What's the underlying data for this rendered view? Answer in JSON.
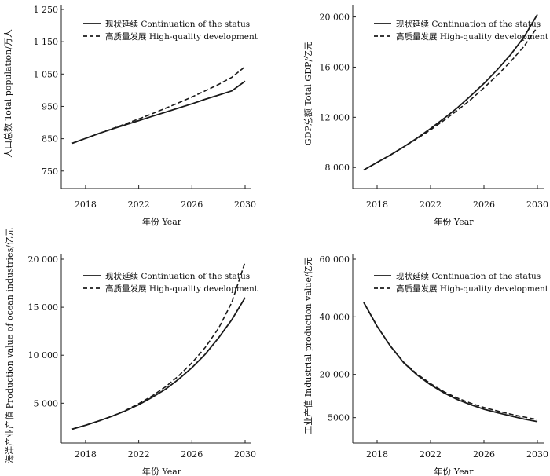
{
  "chart_data": [
    {
      "type": "line",
      "xlabel": "年份 Year",
      "ylabel": "人口总数 Total population/万人",
      "x": [
        2017,
        2018,
        2019,
        2020,
        2021,
        2022,
        2023,
        2024,
        2025,
        2026,
        2027,
        2028,
        2029,
        2030
      ],
      "xticks": [
        2018,
        2022,
        2026,
        2030
      ],
      "xtick_labels": [
        "2018",
        "2022",
        "2026",
        "2030"
      ],
      "yticks": [
        750,
        850,
        950,
        1050,
        1150,
        1250
      ],
      "ytick_labels": [
        "750",
        "850",
        "950",
        "1 050",
        "1 150",
        "1 250"
      ],
      "ylim": [
        730,
        1250
      ],
      "legend_position": "top-left",
      "series": [
        {
          "name": "现状延续 Continuation of the status",
          "style": "solid",
          "values": [
            836,
            851,
            866,
            880,
            893,
            906,
            919,
            932,
            945,
            958,
            972,
            985,
            998,
            1028
          ]
        },
        {
          "name": "高质量发展 High-quality development",
          "style": "dashed",
          "values": [
            836,
            851,
            866,
            881,
            896,
            911,
            927,
            944,
            961,
            979,
            998,
            1018,
            1040,
            1073
          ]
        }
      ]
    },
    {
      "type": "line",
      "xlabel": "年份 Year",
      "ylabel": "GDP总额 Total GDP/亿元",
      "x": [
        2017,
        2018,
        2019,
        2020,
        2021,
        2022,
        2023,
        2024,
        2025,
        2026,
        2027,
        2028,
        2029,
        2030
      ],
      "xticks": [
        2018,
        2022,
        2026,
        2030
      ],
      "xtick_labels": [
        "2018",
        "2022",
        "2026",
        "2030"
      ],
      "yticks": [
        8000,
        12000,
        16000,
        20000
      ],
      "ytick_labels": [
        "8 000",
        "12 000",
        "16 000",
        "20 000"
      ],
      "ylim": [
        7200,
        20600
      ],
      "legend_position": "top-right",
      "series": [
        {
          "name": "现状延续 Continuation of the status",
          "style": "solid",
          "values": [
            7800,
            8400,
            9000,
            9650,
            10350,
            11100,
            11900,
            12750,
            13700,
            14700,
            15800,
            17000,
            18400,
            20200
          ]
        },
        {
          "name": "高质量发展 High-quality development",
          "style": "dashed",
          "values": [
            7800,
            8400,
            9000,
            9650,
            10300,
            11000,
            11750,
            12550,
            13400,
            14350,
            15350,
            16450,
            17650,
            19200
          ]
        }
      ]
    },
    {
      "type": "line",
      "xlabel": "年份 Year",
      "ylabel": "海洋产业产值 Production value of ocean industries/亿元",
      "x": [
        2017,
        2018,
        2019,
        2020,
        2021,
        2022,
        2023,
        2024,
        2025,
        2026,
        2027,
        2028,
        2029,
        2030
      ],
      "xticks": [
        2018,
        2022,
        2026,
        2030
      ],
      "xtick_labels": [
        "2018",
        "2022",
        "2026",
        "2030"
      ],
      "yticks": [
        5000,
        10000,
        15000,
        20000
      ],
      "ytick_labels": [
        "5 000",
        "10 000",
        "15 000",
        "20 000"
      ],
      "ylim": [
        2000,
        20000
      ],
      "legend_position": "top-left",
      "series": [
        {
          "name": "现状延续 Continuation of the status",
          "style": "solid",
          "values": [
            2300,
            2700,
            3150,
            3650,
            4200,
            4850,
            5600,
            6450,
            7500,
            8700,
            10100,
            11800,
            13700,
            16000
          ]
        },
        {
          "name": "高质量发展 High-quality development",
          "style": "dashed",
          "values": [
            2300,
            2700,
            3150,
            3650,
            4250,
            4950,
            5750,
            6700,
            7850,
            9200,
            10800,
            12800,
            15500,
            19700
          ]
        }
      ]
    },
    {
      "type": "line",
      "xlabel": "年份 Year",
      "ylabel": "工业产值 Industrial production value/亿元",
      "x": [
        2017,
        2018,
        2019,
        2020,
        2021,
        2022,
        2023,
        2024,
        2025,
        2026,
        2027,
        2028,
        2029,
        2030
      ],
      "xticks": [
        2018,
        2022,
        2026,
        2030
      ],
      "xtick_labels": [
        "2018",
        "2022",
        "2026",
        "2030"
      ],
      "yticks": [
        5000,
        20000,
        40000,
        60000
      ],
      "ytick_labels": [
        "5000",
        "20 000",
        "40 000",
        "60 000"
      ],
      "ylim": [
        0,
        60000
      ],
      "legend_position": "top-right",
      "series": [
        {
          "name": "现状延续 Continuation of the status",
          "style": "solid",
          "values": [
            45000,
            36700,
            29800,
            24000,
            19800,
            16400,
            13600,
            11300,
            9500,
            7900,
            6700,
            5600,
            4500,
            3600
          ]
        },
        {
          "name": "高质量发展 High-quality development",
          "style": "dashed",
          "values": [
            45000,
            36700,
            29800,
            24200,
            20100,
            16800,
            14000,
            11800,
            10000,
            8500,
            7300,
            6200,
            5200,
            4300
          ]
        }
      ]
    }
  ]
}
